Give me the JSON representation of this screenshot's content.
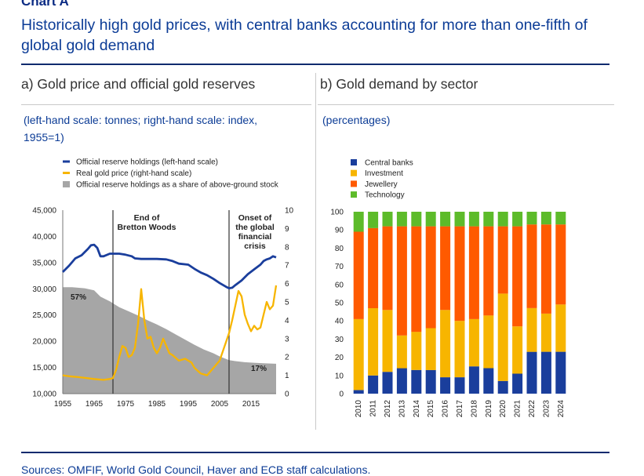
{
  "header": {
    "chart_label": "Chart A",
    "title": "Historically high gold prices, with central banks accounting for more than one-fifth of global gold demand"
  },
  "panel_a": {
    "title": "a) Gold price and official gold reserves",
    "scale_note": "(left-hand scale: tonnes; right-hand scale: index, 1955=1)"
  },
  "panel_b": {
    "title": "b) Gold demand by sector",
    "scale_note": "(percentages)"
  },
  "footer": {
    "sources": "Sources: OMFIF, World Gold Council, Haver and ECB staff calculations."
  },
  "colors": {
    "navy": "#1a3e9c",
    "gold": "#f7b500",
    "orange": "#ff5a00",
    "green": "#5dbb2a",
    "grey": "#a6a6a6"
  },
  "chart_data": [
    {
      "type": "line",
      "title": "a) Gold price and official gold reserves",
      "x_ticks": [
        1955,
        1965,
        1975,
        1985,
        1995,
        2005,
        2015
      ],
      "x_range": [
        1955,
        2023
      ],
      "y_left": {
        "label": "tonnes",
        "range": [
          10000,
          45000
        ],
        "ticks": [
          "10,000",
          "15,000",
          "20,000",
          "25,000",
          "30,000",
          "35,000",
          "40,000",
          "45,000"
        ]
      },
      "y_right": {
        "label": "index, 1955=1",
        "range": [
          0,
          10
        ],
        "ticks": [
          "0",
          "1",
          "2",
          "3",
          "4",
          "5",
          "6",
          "7",
          "8",
          "9",
          "10"
        ]
      },
      "legend": [
        "Official reserve holdings (left-hand scale)",
        "Real gold price (right-hand scale)",
        "Official reserve holdings as a share of above-ground stock"
      ],
      "annotations": {
        "bretton_woods": {
          "year": 1971,
          "text": [
            "End of",
            "Bretton Woods"
          ]
        },
        "crisis": {
          "year": 2008,
          "text": [
            "Onset of",
            "the global",
            "financial",
            "crisis"
          ]
        },
        "share_start": "57%",
        "share_end": "17%"
      },
      "series": [
        {
          "name": "Official reserve holdings (left-hand scale)",
          "axis": "left",
          "points": [
            [
              1955,
              33200
            ],
            [
              1957,
              34400
            ],
            [
              1959,
              35800
            ],
            [
              1961,
              36400
            ],
            [
              1963,
              37600
            ],
            [
              1964,
              38300
            ],
            [
              1965,
              38400
            ],
            [
              1966,
              37800
            ],
            [
              1967,
              36200
            ],
            [
              1968,
              36200
            ],
            [
              1970,
              36700
            ],
            [
              1973,
              36700
            ],
            [
              1975,
              36500
            ],
            [
              1977,
              36200
            ],
            [
              1978,
              35800
            ],
            [
              1980,
              35700
            ],
            [
              1985,
              35700
            ],
            [
              1988,
              35600
            ],
            [
              1990,
              35300
            ],
            [
              1992,
              34800
            ],
            [
              1995,
              34600
            ],
            [
              1997,
              33800
            ],
            [
              1999,
              33100
            ],
            [
              2001,
              32600
            ],
            [
              2003,
              31900
            ],
            [
              2005,
              31100
            ],
            [
              2007,
              30400
            ],
            [
              2008,
              30100
            ],
            [
              2009,
              30200
            ],
            [
              2010,
              30700
            ],
            [
              2012,
              31600
            ],
            [
              2014,
              32800
            ],
            [
              2016,
              33700
            ],
            [
              2018,
              34600
            ],
            [
              2019,
              35300
            ],
            [
              2020,
              35600
            ],
            [
              2021,
              35800
            ],
            [
              2022,
              36200
            ],
            [
              2023,
              36000
            ]
          ]
        },
        {
          "name": "Real gold price (right-hand scale)",
          "axis": "right",
          "points": [
            [
              1955,
              1.0
            ],
            [
              1957,
              0.95
            ],
            [
              1960,
              0.9
            ],
            [
              1965,
              0.8
            ],
            [
              1968,
              0.75
            ],
            [
              1970,
              0.8
            ],
            [
              1971,
              0.85
            ],
            [
              1972,
              1.3
            ],
            [
              1973,
              2.0
            ],
            [
              1974,
              2.6
            ],
            [
              1975,
              2.5
            ],
            [
              1976,
              2.0
            ],
            [
              1977,
              2.1
            ],
            [
              1978,
              2.5
            ],
            [
              1979,
              3.8
            ],
            [
              1980,
              5.7
            ],
            [
              1981,
              4.0
            ],
            [
              1982,
              3.0
            ],
            [
              1983,
              3.1
            ],
            [
              1984,
              2.5
            ],
            [
              1985,
              2.2
            ],
            [
              1986,
              2.5
            ],
            [
              1987,
              3.0
            ],
            [
              1988,
              2.6
            ],
            [
              1989,
              2.2
            ],
            [
              1990,
              2.1
            ],
            [
              1992,
              1.8
            ],
            [
              1994,
              1.9
            ],
            [
              1996,
              1.7
            ],
            [
              1997,
              1.4
            ],
            [
              1999,
              1.1
            ],
            [
              2001,
              1.0
            ],
            [
              2003,
              1.4
            ],
            [
              2005,
              1.8
            ],
            [
              2007,
              2.8
            ],
            [
              2008,
              3.3
            ],
            [
              2009,
              4.0
            ],
            [
              2010,
              4.8
            ],
            [
              2011,
              5.6
            ],
            [
              2012,
              5.3
            ],
            [
              2013,
              4.3
            ],
            [
              2014,
              3.8
            ],
            [
              2015,
              3.4
            ],
            [
              2016,
              3.7
            ],
            [
              2017,
              3.5
            ],
            [
              2018,
              3.6
            ],
            [
              2019,
              4.3
            ],
            [
              2020,
              5.0
            ],
            [
              2021,
              4.6
            ],
            [
              2022,
              4.8
            ],
            [
              2023,
              5.9
            ]
          ]
        },
        {
          "name": "Official reserve holdings as a share of above-ground stock",
          "axis": "left",
          "style": "area",
          "points": [
            [
              1955,
              30300
            ],
            [
              1958,
              30300
            ],
            [
              1962,
              30100
            ],
            [
              1965,
              29700
            ],
            [
              1967,
              28500
            ],
            [
              1970,
              27600
            ],
            [
              1973,
              26500
            ],
            [
              1976,
              25700
            ],
            [
              1979,
              24900
            ],
            [
              1982,
              24000
            ],
            [
              1985,
              23200
            ],
            [
              1988,
              22300
            ],
            [
              1991,
              21300
            ],
            [
              1994,
              20300
            ],
            [
              1997,
              19300
            ],
            [
              2000,
              18400
            ],
            [
              2003,
              17700
            ],
            [
              2005,
              17100
            ],
            [
              2008,
              16400
            ],
            [
              2010,
              16200
            ],
            [
              2013,
              16000
            ],
            [
              2016,
              15900
            ],
            [
              2019,
              15800
            ],
            [
              2023,
              15700
            ]
          ]
        }
      ]
    },
    {
      "type": "bar",
      "stacked": true,
      "title": "b) Gold demand by sector",
      "ylabel": "percentages",
      "ylim": [
        0,
        100
      ],
      "y_ticks": [
        "0",
        "10",
        "20",
        "30",
        "40",
        "50",
        "60",
        "70",
        "80",
        "90",
        "100"
      ],
      "categories": [
        "2010",
        "2011",
        "2012",
        "2013",
        "2014",
        "2015",
        "2016",
        "2017",
        "2018",
        "2019",
        "2020",
        "2021",
        "2022",
        "2023",
        "2024"
      ],
      "series": [
        {
          "name": "Central banks",
          "values": [
            2,
            10,
            12,
            14,
            13,
            13,
            9,
            9,
            15,
            14,
            7,
            11,
            23,
            23,
            23
          ]
        },
        {
          "name": "Investment",
          "values": [
            39,
            37,
            34,
            18,
            21,
            23,
            37,
            31,
            26,
            29,
            48,
            26,
            24,
            21,
            26
          ]
        },
        {
          "name": "Jewellery",
          "values": [
            48,
            44,
            46,
            60,
            58,
            56,
            46,
            52,
            51,
            49,
            37,
            55,
            46,
            49,
            44
          ]
        },
        {
          "name": "Technology",
          "values": [
            11,
            9,
            8,
            8,
            8,
            8,
            8,
            8,
            8,
            8,
            8,
            8,
            7,
            7,
            7
          ]
        }
      ]
    }
  ]
}
